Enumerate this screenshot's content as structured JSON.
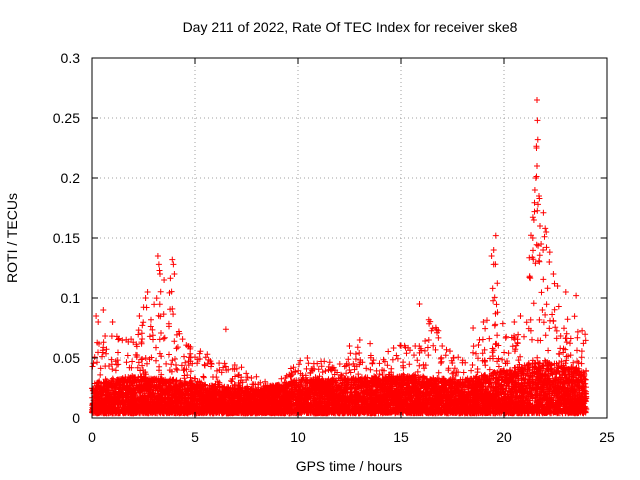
{
  "chart_data": {
    "type": "scatter",
    "title": "Day 211 of 2022, Rate Of TEC Index for receiver ske8",
    "xlabel": "GPS time / hours",
    "ylabel": "ROTI / TECUs",
    "xlim": [
      0,
      25
    ],
    "ylim": [
      0,
      0.3
    ],
    "x_ticks": [
      "0",
      "5",
      "10",
      "15",
      "20",
      "25"
    ],
    "y_ticks": [
      "0",
      "0.05",
      "0.1",
      "0.15",
      "0.2",
      "0.25",
      "0.3"
    ],
    "grid": true,
    "marker": "+",
    "series_color": "#ff0000",
    "envelope": {
      "x": [
        0,
        0.25,
        0.5,
        1,
        1.5,
        2,
        2.5,
        3,
        3.2,
        3.5,
        3.9,
        4.2,
        4.6,
        5,
        6,
        7,
        8,
        9,
        9.5,
        10,
        11,
        12,
        12.5,
        13,
        14,
        15,
        16,
        16.5,
        17,
        18,
        19,
        19.3,
        19.6,
        20,
        20.5,
        21,
        21.3,
        21.6,
        21.8,
        22,
        22.5,
        23,
        23.5,
        24
      ],
      "y": [
        0.045,
        0.085,
        0.07,
        0.075,
        0.07,
        0.065,
        0.1,
        0.11,
        0.135,
        0.09,
        0.13,
        0.09,
        0.06,
        0.06,
        0.05,
        0.045,
        0.035,
        0.03,
        0.04,
        0.05,
        0.05,
        0.045,
        0.055,
        0.06,
        0.05,
        0.065,
        0.06,
        0.095,
        0.06,
        0.05,
        0.07,
        0.1,
        0.14,
        0.07,
        0.08,
        0.09,
        0.16,
        0.265,
        0.2,
        0.16,
        0.12,
        0.1,
        0.09,
        0.07
      ]
    },
    "baseline": {
      "x": [
        0,
        2,
        4,
        5,
        8,
        10,
        15,
        18,
        20,
        22,
        24
      ],
      "y": [
        0.018,
        0.022,
        0.02,
        0.018,
        0.015,
        0.02,
        0.022,
        0.02,
        0.025,
        0.03,
        0.025
      ]
    },
    "points": [
      [
        3.2,
        0.135
      ],
      [
        3.25,
        0.128
      ],
      [
        3.9,
        0.132
      ],
      [
        3.95,
        0.128
      ],
      [
        4.0,
        0.12
      ],
      [
        3.5,
        0.115
      ],
      [
        3.3,
        0.12
      ],
      [
        6.5,
        0.074
      ],
      [
        15.9,
        0.095
      ],
      [
        19.5,
        0.14
      ],
      [
        19.6,
        0.152
      ],
      [
        19.4,
        0.135
      ],
      [
        19.5,
        0.128
      ],
      [
        19.45,
        0.108
      ],
      [
        21.6,
        0.265
      ],
      [
        21.62,
        0.248
      ],
      [
        21.64,
        0.232
      ],
      [
        21.58,
        0.225
      ],
      [
        21.6,
        0.21
      ],
      [
        21.55,
        0.2
      ],
      [
        21.5,
        0.19
      ],
      [
        21.7,
        0.185
      ],
      [
        21.65,
        0.178
      ],
      [
        21.48,
        0.172
      ],
      [
        21.45,
        0.165
      ],
      [
        21.75,
        0.16
      ],
      [
        22.0,
        0.158
      ],
      [
        22.05,
        0.155
      ],
      [
        21.4,
        0.15
      ],
      [
        21.8,
        0.145
      ],
      [
        21.9,
        0.14
      ],
      [
        22.2,
        0.13
      ],
      [
        22.4,
        0.12
      ],
      [
        22.6,
        0.11
      ],
      [
        23.0,
        0.105
      ],
      [
        23.5,
        0.102
      ],
      [
        20.8,
        0.085
      ],
      [
        20.5,
        0.08
      ],
      [
        0.2,
        0.085
      ],
      [
        0.3,
        0.08
      ],
      [
        0.55,
        0.09
      ],
      [
        1.0,
        0.08
      ],
      [
        2.6,
        0.1
      ],
      [
        2.7,
        0.105
      ],
      [
        2.3,
        0.085
      ],
      [
        12.5,
        0.06
      ],
      [
        13.0,
        0.065
      ],
      [
        13.5,
        0.062
      ],
      [
        15.0,
        0.06
      ],
      [
        17.0,
        0.06
      ],
      [
        18.5,
        0.075
      ],
      [
        19.0,
        0.08
      ]
    ]
  }
}
